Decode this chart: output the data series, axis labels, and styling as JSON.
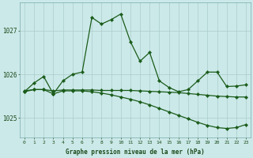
{
  "hours": [
    0,
    1,
    2,
    3,
    4,
    5,
    6,
    7,
    8,
    9,
    10,
    11,
    12,
    13,
    14,
    15,
    16,
    17,
    18,
    19,
    20,
    21,
    22,
    23
  ],
  "y_main": [
    1025.6,
    1025.8,
    1025.95,
    1025.55,
    1025.85,
    1026.0,
    1026.05,
    1027.3,
    1027.15,
    1027.25,
    1027.38,
    1026.75,
    1026.3,
    1026.5,
    1025.85,
    1025.7,
    1025.6,
    1025.65,
    1025.85,
    1026.05,
    1026.05,
    1025.72,
    1025.73,
    1025.76
  ],
  "y_flat": [
    1025.62,
    1025.65,
    1025.65,
    1025.62,
    1025.64,
    1025.64,
    1025.64,
    1025.64,
    1025.63,
    1025.63,
    1025.63,
    1025.63,
    1025.62,
    1025.61,
    1025.6,
    1025.59,
    1025.58,
    1025.56,
    1025.54,
    1025.52,
    1025.5,
    1025.49,
    1025.48,
    1025.48
  ],
  "y_low": [
    1025.6,
    1025.65,
    1025.65,
    1025.55,
    1025.62,
    1025.62,
    1025.62,
    1025.6,
    1025.57,
    1025.53,
    1025.48,
    1025.43,
    1025.37,
    1025.3,
    1025.22,
    1025.14,
    1025.06,
    1024.98,
    1024.9,
    1024.83,
    1024.78,
    1024.76,
    1024.78,
    1024.85
  ],
  "background_color": "#cce9e9",
  "line_color": "#1a5c1a",
  "grid_color": "#aacccc",
  "xlabel": "Graphe pression niveau de la mer (hPa)",
  "ylim_min": 1024.55,
  "ylim_max": 1027.65,
  "yticks": [
    1025,
    1026,
    1027
  ],
  "text_color": "#1a4a1a"
}
